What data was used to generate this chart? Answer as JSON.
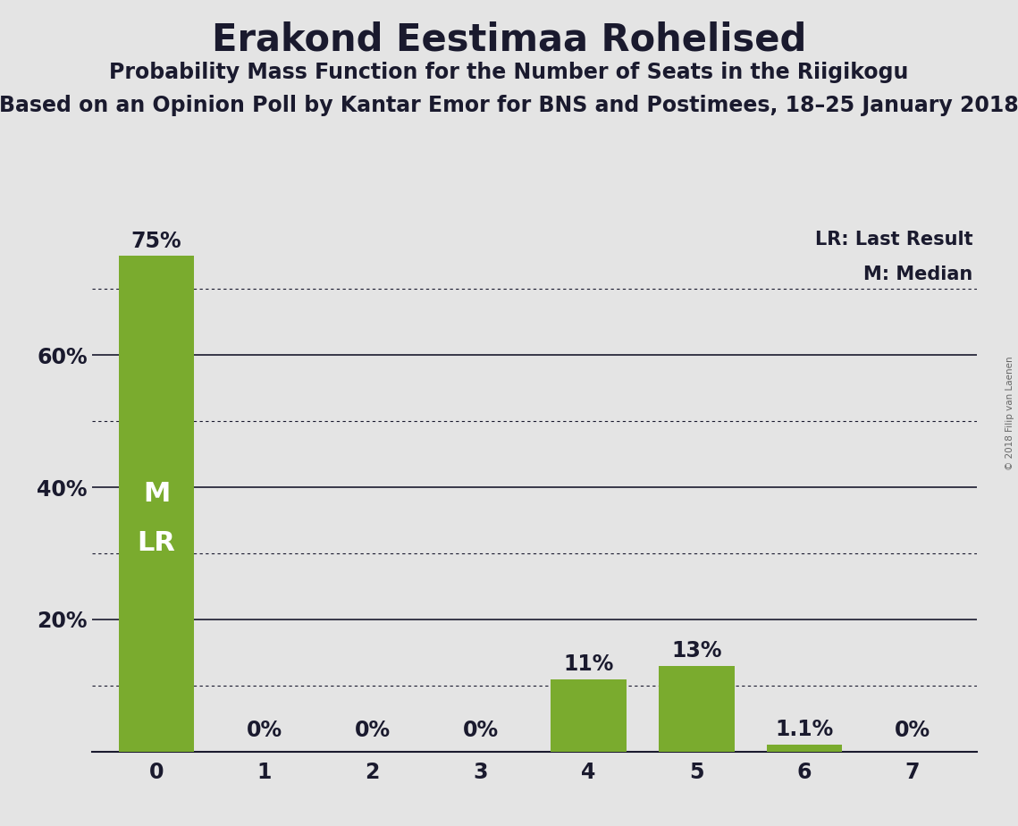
{
  "title": "Erakond Eestimaa Rohelised",
  "subtitle1": "Probability Mass Function for the Number of Seats in the Riigikogu",
  "subtitle2": "Based on an Opinion Poll by Kantar Emor for BNS and Postimees, 18–25 January 2018",
  "copyright": "© 2018 Filip van Laenen",
  "categories": [
    0,
    1,
    2,
    3,
    4,
    5,
    6,
    7
  ],
  "values": [
    0.75,
    0.0,
    0.0,
    0.0,
    0.11,
    0.13,
    0.011,
    0.0
  ],
  "labels": [
    "75%",
    "0%",
    "0%",
    "0%",
    "11%",
    "13%",
    "1.1%",
    "0%"
  ],
  "bar_color": "#7aab2e",
  "background_color": "#e4e4e4",
  "ylim": [
    0,
    0.8
  ],
  "yticks": [
    0.0,
    0.2,
    0.4,
    0.6
  ],
  "ytick_labels": [
    "",
    "20%",
    "40%",
    "60%"
  ],
  "dotted_gridlines": [
    0.1,
    0.3,
    0.5,
    0.7
  ],
  "solid_gridlines": [
    0.2,
    0.4,
    0.6
  ],
  "legend_lr": "LR: Last Result",
  "legend_m": "M: Median",
  "text_color": "#1a1a2e",
  "inside_label_bar": 0,
  "inside_labels": [
    "M",
    "LR"
  ],
  "title_fontsize": 30,
  "subtitle1_fontsize": 17,
  "subtitle2_fontsize": 17,
  "bar_label_fontsize": 17,
  "ytick_fontsize": 17,
  "xtick_fontsize": 17,
  "legend_fontsize": 15,
  "inside_label_fontsize": 22,
  "copyright_fontsize": 7.5
}
